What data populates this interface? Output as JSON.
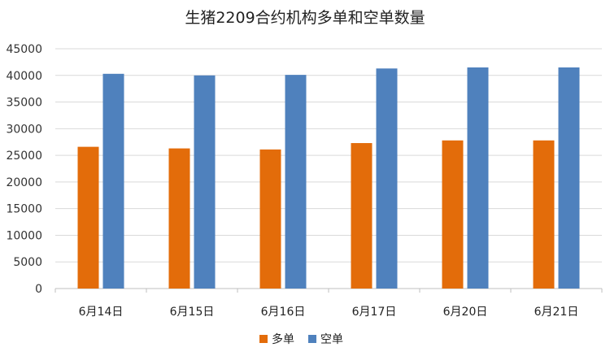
{
  "chart_data": {
    "type": "bar",
    "title": "生猪2209合约机构多单和空单数量",
    "categories": [
      "6月14日",
      "6月15日",
      "6月16日",
      "6月17日",
      "6月20日",
      "6月21日"
    ],
    "series": [
      {
        "name": "多单",
        "color": "#E36C0A",
        "values": [
          26600,
          26300,
          26100,
          27300,
          27800,
          27800
        ]
      },
      {
        "name": "空单",
        "color": "#4F81BD",
        "values": [
          40300,
          40000,
          40100,
          41300,
          41500,
          41500
        ]
      }
    ],
    "ylim": [
      0,
      45000
    ],
    "yticks": [
      0,
      5000,
      10000,
      15000,
      20000,
      25000,
      30000,
      35000,
      40000,
      45000
    ],
    "grid": true,
    "legend": "bottom"
  }
}
